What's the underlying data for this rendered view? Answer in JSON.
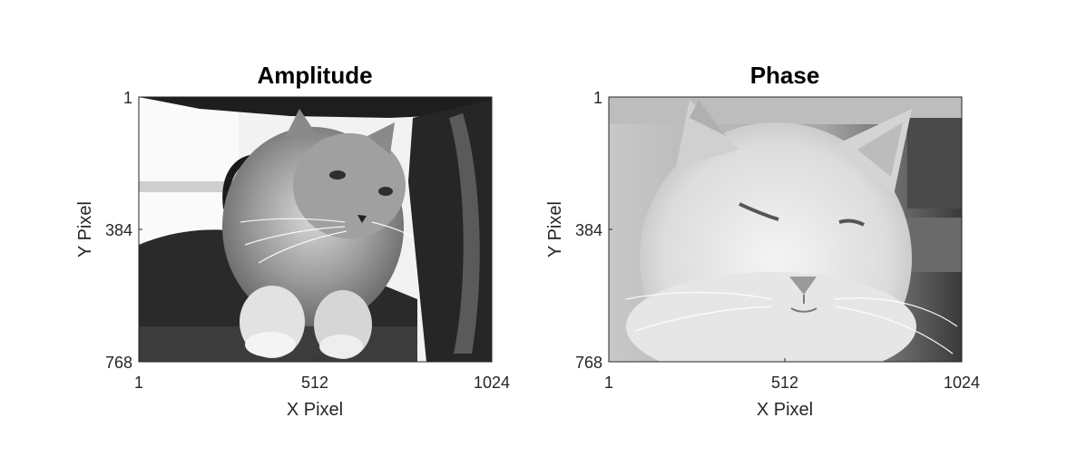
{
  "chart_data": [
    {
      "type": "image",
      "title": "Amplitude",
      "xlabel": "X Pixel",
      "ylabel": "Y Pixel",
      "xticks": [
        "1",
        "512",
        "1024"
      ],
      "yticks": [
        "1",
        "384",
        "768"
      ],
      "xlim": [
        1,
        1024
      ],
      "ylim": [
        1,
        768
      ],
      "y_direction": "reversed",
      "colormap": "gray",
      "image_content": "grayscale photo of a long-haired cat lying on a chair"
    },
    {
      "type": "image",
      "title": "Phase",
      "xlabel": "X Pixel",
      "ylabel": "Y Pixel",
      "xticks": [
        "1",
        "512",
        "1024"
      ],
      "yticks": [
        "1",
        "384",
        "768"
      ],
      "xlim": [
        1,
        1024
      ],
      "ylim": [
        1,
        768
      ],
      "y_direction": "reversed",
      "colormap": "gray",
      "image_content": "grayscale close-up photo of a white cat's face"
    }
  ]
}
